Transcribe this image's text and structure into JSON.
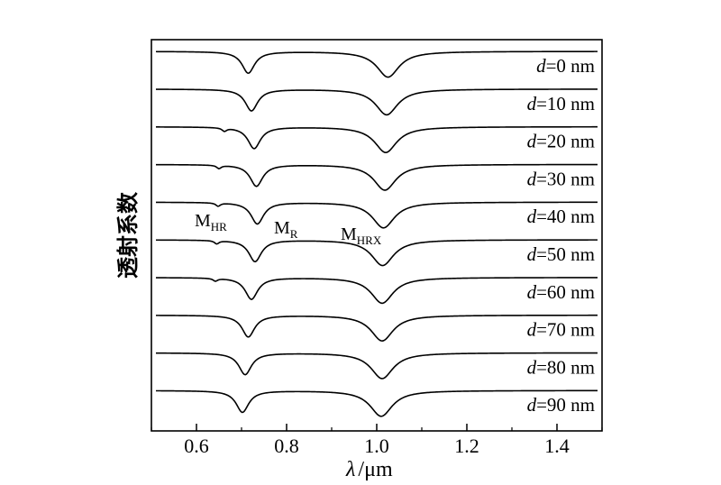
{
  "chart_data": {
    "type": "line",
    "title": "",
    "xlabel": {
      "symbol": "λ",
      "unit": "/μm"
    },
    "ylabel": "透射系数",
    "xlim": [
      0.5,
      1.5
    ],
    "x_ticks": [
      0.6,
      0.8,
      1.0,
      1.2,
      1.4
    ],
    "x_tick_labels": [
      "0.6",
      "0.8",
      "1.0",
      "1.2",
      "1.4"
    ],
    "grid": false,
    "legend": "none",
    "annotations": [
      {
        "main": "M",
        "sub": "HR"
      },
      {
        "main": "M",
        "sub": "R"
      },
      {
        "main": "M",
        "sub": "HRX"
      }
    ],
    "series": [
      {
        "label_var": "d",
        "label_value": "=0 nm",
        "dips": [
          {
            "x": 0.715,
            "depth": 0.8,
            "width": 0.017
          },
          {
            "x": 1.025,
            "depth": 0.95,
            "width": 0.03
          }
        ]
      },
      {
        "label_var": "d",
        "label_value": "=10 nm",
        "dips": [
          {
            "x": 0.722,
            "depth": 0.8,
            "width": 0.017
          },
          {
            "x": 1.022,
            "depth": 0.95,
            "width": 0.03
          }
        ]
      },
      {
        "label_var": "d",
        "label_value": "=20 nm",
        "dips": [
          {
            "x": 0.662,
            "depth": 0.12,
            "width": 0.006
          },
          {
            "x": 0.728,
            "depth": 0.8,
            "width": 0.017
          },
          {
            "x": 1.02,
            "depth": 0.95,
            "width": 0.03
          }
        ]
      },
      {
        "label_var": "d",
        "label_value": "=30 nm",
        "dips": [
          {
            "x": 0.65,
            "depth": 0.12,
            "width": 0.006
          },
          {
            "x": 0.733,
            "depth": 0.8,
            "width": 0.017
          },
          {
            "x": 1.018,
            "depth": 0.95,
            "width": 0.03
          }
        ]
      },
      {
        "label_var": "d",
        "label_value": "=40 nm",
        "dips": [
          {
            "x": 0.648,
            "depth": 0.12,
            "width": 0.006
          },
          {
            "x": 0.735,
            "depth": 0.8,
            "width": 0.017
          },
          {
            "x": 1.015,
            "depth": 0.95,
            "width": 0.03
          }
        ]
      },
      {
        "label_var": "d",
        "label_value": "=50 nm",
        "dips": [
          {
            "x": 0.645,
            "depth": 0.12,
            "width": 0.006
          },
          {
            "x": 0.73,
            "depth": 0.8,
            "width": 0.017
          },
          {
            "x": 1.013,
            "depth": 0.95,
            "width": 0.03
          }
        ]
      },
      {
        "label_var": "d",
        "label_value": "=60 nm",
        "dips": [
          {
            "x": 0.642,
            "depth": 0.1,
            "width": 0.006
          },
          {
            "x": 0.722,
            "depth": 0.8,
            "width": 0.017
          },
          {
            "x": 1.012,
            "depth": 0.95,
            "width": 0.03
          }
        ]
      },
      {
        "label_var": "d",
        "label_value": "=70 nm",
        "dips": [
          {
            "x": 0.715,
            "depth": 0.8,
            "width": 0.017
          },
          {
            "x": 1.012,
            "depth": 0.95,
            "width": 0.03
          }
        ]
      },
      {
        "label_var": "d",
        "label_value": "=80 nm",
        "dips": [
          {
            "x": 0.708,
            "depth": 0.8,
            "width": 0.017
          },
          {
            "x": 1.012,
            "depth": 0.95,
            "width": 0.03
          }
        ]
      },
      {
        "label_var": "d",
        "label_value": "=90 nm",
        "dips": [
          {
            "x": 0.702,
            "depth": 0.8,
            "width": 0.017
          },
          {
            "x": 1.01,
            "depth": 0.95,
            "width": 0.03
          }
        ]
      }
    ]
  }
}
